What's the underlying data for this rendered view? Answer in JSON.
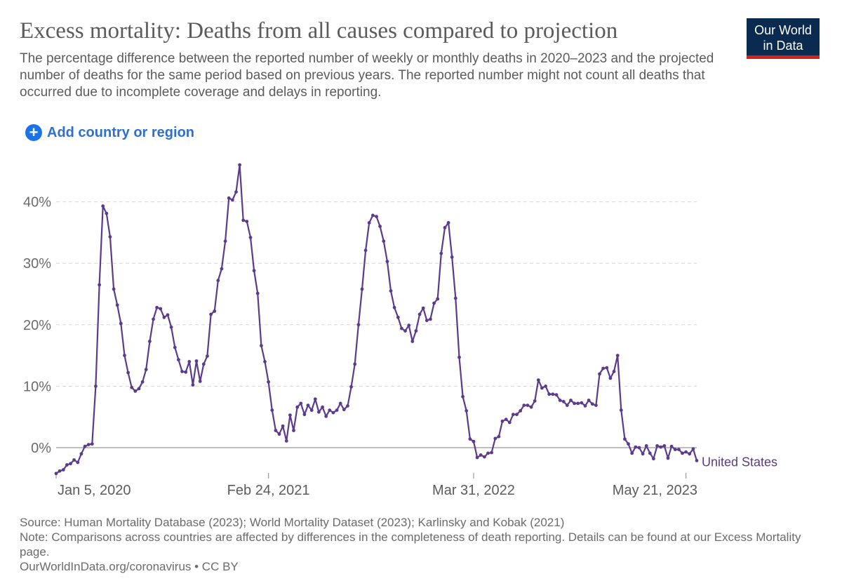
{
  "header": {
    "title": "Excess mortality: Deaths from all causes compared to projection",
    "subtitle": "The percentage difference between the reported number of weekly or monthly deaths in 2020–2023 and the projected number of deaths for the same period based on previous years. The reported number might not count all deaths that occurred due to incomplete coverage and delays in reporting.",
    "logo_line1": "Our World",
    "logo_line2": "in Data"
  },
  "controls": {
    "add_label": "Add country or region"
  },
  "colors": {
    "series": "#5c3a8c",
    "logo_bg": "#0b2a4f",
    "logo_bar": "#ce261e",
    "link": "#2f6fd1"
  },
  "chart_data": {
    "type": "line",
    "ylim": [
      -4.5,
      46
    ],
    "y_ticks": [
      0,
      10,
      20,
      30,
      40
    ],
    "y_tick_labels": [
      "0%",
      "10%",
      "20%",
      "30%",
      "40%"
    ],
    "x_tick_labels": [
      "Jan 5, 2020",
      "Feb 24, 2021",
      "Mar 31, 2022",
      "May 21, 2023"
    ],
    "x_tick_index": [
      0,
      59,
      116,
      175
    ],
    "grid": true,
    "series": [
      {
        "name": "United States",
        "values": [
          -4.2,
          -3.8,
          -3.6,
          -2.8,
          -2.6,
          -2.0,
          -2.4,
          -1.0,
          0.2,
          0.5,
          0.6,
          10,
          26.5,
          39.3,
          38.1,
          34.3,
          25.8,
          23.2,
          20.2,
          15.0,
          12.2,
          9.8,
          9.2,
          9.6,
          10.7,
          12.7,
          17.3,
          20.9,
          22.8,
          22.6,
          21.2,
          21.6,
          19.6,
          16.3,
          14.3,
          12.4,
          12.3,
          14.0,
          10.2,
          14.1,
          10.8,
          13.6,
          14.9,
          21.7,
          22.2,
          27.2,
          29.1,
          33.6,
          40.6,
          40.3,
          41.6,
          46.0,
          37.0,
          36.8,
          34.2,
          28.8,
          25.1,
          16.6,
          14.0,
          10.7,
          6.1,
          2.8,
          2.2,
          3.5,
          1.1,
          5.3,
          2.8,
          6.6,
          7.2,
          5.4,
          6.9,
          6.1,
          7.9,
          5.8,
          6.6,
          5.1,
          6.1,
          5.7,
          6.1,
          7.2,
          6.2,
          6.8,
          9.9,
          13.6,
          20.0,
          25.8,
          32.1,
          36.6,
          37.8,
          37.6,
          36.0,
          33.6,
          30.3,
          25.5,
          22.8,
          21.2,
          19.4,
          19.0,
          19.9,
          17.3,
          19.0,
          21.7,
          22.7,
          20.7,
          20.9,
          23.5,
          24.2,
          31.6,
          35.8,
          36.6,
          31.0,
          24.3,
          14.7,
          8.3,
          6.0,
          1.4,
          1.0,
          -1.6,
          -1.2,
          -1.5,
          -0.9,
          -0.8,
          1.5,
          1.8,
          4.3,
          4.6,
          4.1,
          5.4,
          5.4,
          6.0,
          6.9,
          6.9,
          6.6,
          7.6,
          11.0,
          9.7,
          10.0,
          8.7,
          8.7,
          8.6,
          7.7,
          7.5,
          6.9,
          7.7,
          7.2,
          7.2,
          7.3,
          6.8,
          7.7,
          7.1,
          6.9,
          12.0,
          12.9,
          13.0,
          11.3,
          12.4,
          15.0,
          6.1,
          1.4,
          0.6,
          -0.9,
          0.1,
          0.0,
          -1.0,
          0.3,
          -0.9,
          -1.8,
          0.3,
          0.1,
          0.3,
          -1.7,
          0.2,
          -0.3,
          -0.3,
          -0.9,
          -0.7,
          -1.0,
          -0.2,
          -2.1
        ],
        "end_label": "United States"
      }
    ]
  },
  "footer": {
    "source": "Source: Human Mortality Database (2023); World Mortality Dataset (2023); Karlinsky and Kobak (2021)",
    "note": "Note: Comparisons across countries are affected by differences in the completeness of death reporting. Details can be found at our Excess Mortality page.",
    "credit": "OurWorldInData.org/coronavirus • CC BY"
  }
}
